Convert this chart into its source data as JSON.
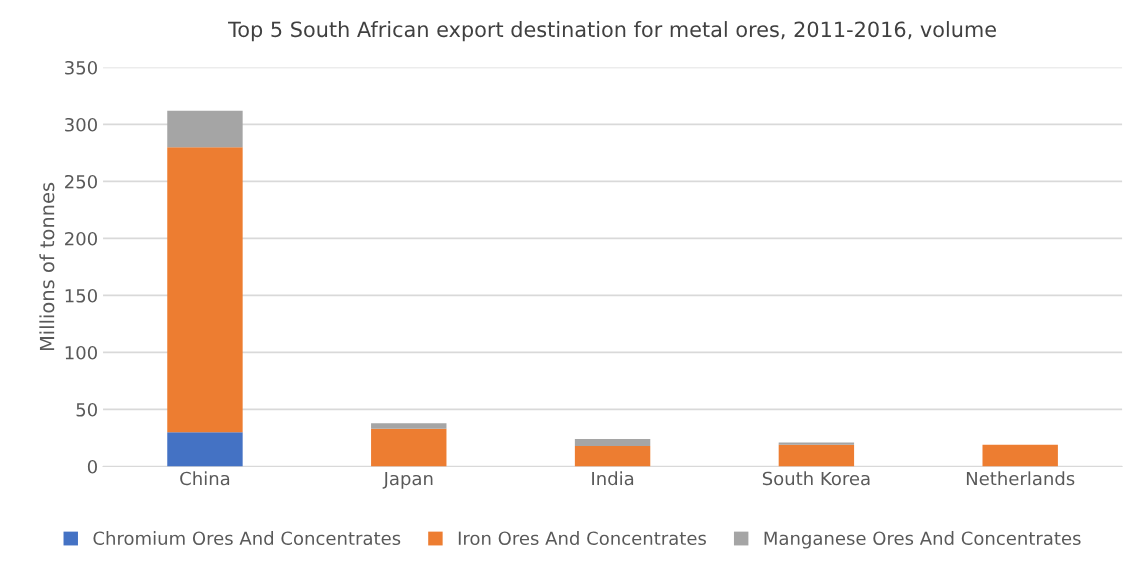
{
  "chart_data": {
    "type": "bar",
    "stacked": true,
    "title": "Top 5 South African export destination for metal ores, 2011-2016, volume",
    "ylabel": "Millions of tonnes",
    "categories": [
      "China",
      "Japan",
      "India",
      "South Korea",
      "Netherlands"
    ],
    "series": [
      {
        "name": "Chromium Ores And Concentrates",
        "color": "#4472c4",
        "values": [
          30,
          0,
          0,
          0,
          0
        ]
      },
      {
        "name": "Iron Ores And Concentrates",
        "color": "#ed7d31",
        "values": [
          250,
          33,
          18,
          19,
          19
        ]
      },
      {
        "name": "Manganese Ores And Concentrates",
        "color": "#a5a5a5",
        "values": [
          32,
          5,
          6,
          2,
          null
        ]
      }
    ],
    "ylim": [
      0,
      350
    ],
    "yticks": [
      0,
      50,
      100,
      150,
      200,
      250,
      300,
      350
    ],
    "grid": "y",
    "legend": "bottom"
  }
}
